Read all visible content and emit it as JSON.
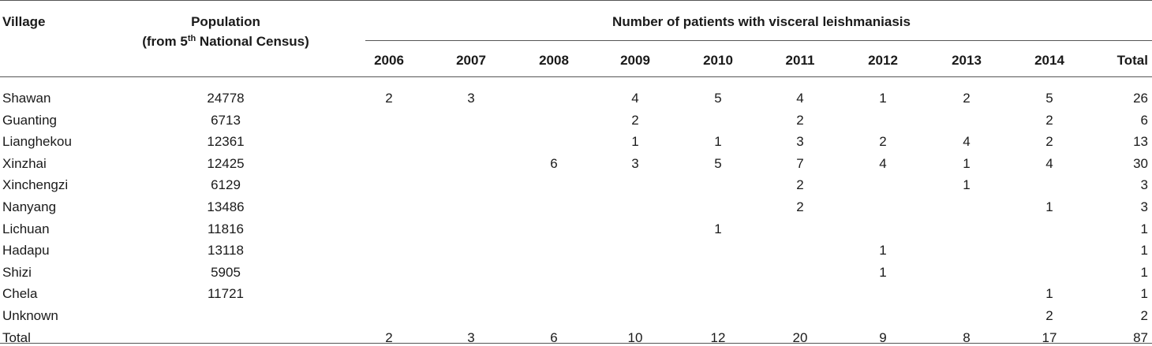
{
  "table": {
    "header": {
      "village": "Village",
      "population_line1": "Population",
      "population_line2_pre": "(from 5",
      "population_line2_sup": "th",
      "population_line2_post": " National Census)",
      "group_label": "Number of patients with visceral leishmaniasis",
      "years": [
        "2006",
        "2007",
        "2008",
        "2009",
        "2010",
        "2011",
        "2012",
        "2013",
        "2014"
      ],
      "total": "Total"
    },
    "rows": [
      {
        "village": "Shawan",
        "population": "24778",
        "counts": [
          "2",
          "3",
          "",
          "4",
          "5",
          "4",
          "1",
          "2",
          "5"
        ],
        "total": "26"
      },
      {
        "village": "Guanting",
        "population": "6713",
        "counts": [
          "",
          "",
          "",
          "2",
          "",
          "2",
          "",
          "",
          "2"
        ],
        "total": "6"
      },
      {
        "village": "Lianghekou",
        "population": "12361",
        "counts": [
          "",
          "",
          "",
          "1",
          "1",
          "3",
          "2",
          "4",
          "2"
        ],
        "total": "13"
      },
      {
        "village": "Xinzhai",
        "population": "12425",
        "counts": [
          "",
          "",
          "6",
          "3",
          "5",
          "7",
          "4",
          "1",
          "4"
        ],
        "total": "30"
      },
      {
        "village": "Xinchengzi",
        "population": "6129",
        "counts": [
          "",
          "",
          "",
          "",
          "",
          "2",
          "",
          "1",
          ""
        ],
        "total": "3"
      },
      {
        "village": "Nanyang",
        "population": "13486",
        "counts": [
          "",
          "",
          "",
          "",
          "",
          "2",
          "",
          "",
          "1"
        ],
        "total": "3"
      },
      {
        "village": "Lichuan",
        "population": "11816",
        "counts": [
          "",
          "",
          "",
          "",
          "1",
          "",
          "",
          "",
          ""
        ],
        "total": "1"
      },
      {
        "village": "Hadapu",
        "population": "13118",
        "counts": [
          "",
          "",
          "",
          "",
          "",
          "",
          "1",
          "",
          ""
        ],
        "total": "1"
      },
      {
        "village": "Shizi",
        "population": "5905",
        "counts": [
          "",
          "",
          "",
          "",
          "",
          "",
          "1",
          "",
          ""
        ],
        "total": "1"
      },
      {
        "village": "Chela",
        "population": "11721",
        "counts": [
          "",
          "",
          "",
          "",
          "",
          "",
          "",
          "",
          "1"
        ],
        "total": "1"
      },
      {
        "village": "Unknown",
        "population": "",
        "counts": [
          "",
          "",
          "",
          "",
          "",
          "",
          "",
          "",
          "2"
        ],
        "total": "2"
      },
      {
        "village": "Total",
        "population": "",
        "counts": [
          "2",
          "3",
          "6",
          "10",
          "12",
          "20",
          "9",
          "8",
          "17"
        ],
        "total": "87"
      }
    ]
  }
}
